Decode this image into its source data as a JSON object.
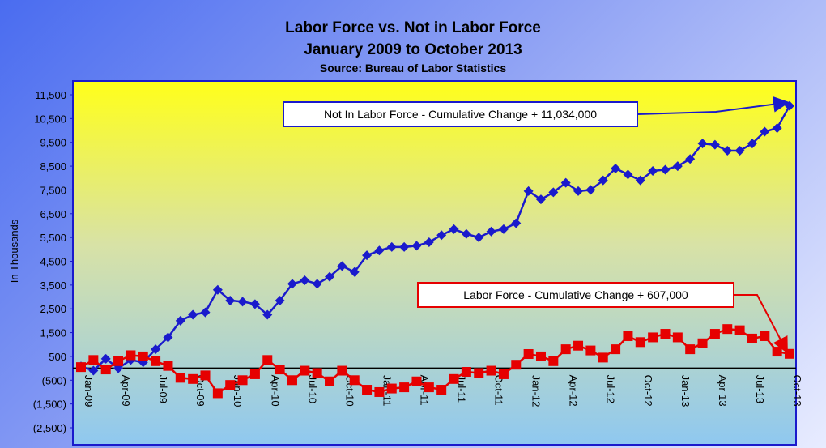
{
  "chart_data": {
    "type": "line",
    "title": "Labor Force vs. Not in Labor Force",
    "subtitle": "January 2009 to October 2013",
    "source": "Source: Bureau of Labor Statistics",
    "ylabel": "In Thousands",
    "xlabel": "",
    "ylim": [
      -2500,
      11500
    ],
    "yticks": [
      11500,
      10500,
      9500,
      8500,
      7500,
      6500,
      5500,
      4500,
      3500,
      2500,
      1500,
      500,
      -500,
      -1500,
      -2500
    ],
    "ytick_labels": [
      "11,500",
      "10,500",
      "9,500",
      "8,500",
      "7,500",
      "6,500",
      "5,500",
      "4,500",
      "3,500",
      "2,500",
      "1,500",
      "500",
      "(500)",
      "(1,500)",
      "(2,500)"
    ],
    "x": [
      "Jan-09",
      "Feb-09",
      "Mar-09",
      "Apr-09",
      "May-09",
      "Jun-09",
      "Jul-09",
      "Aug-09",
      "Sep-09",
      "Oct-09",
      "Nov-09",
      "Dec-09",
      "Jan-10",
      "Feb-10",
      "Mar-10",
      "Apr-10",
      "May-10",
      "Jun-10",
      "Jul-10",
      "Aug-10",
      "Sep-10",
      "Oct-10",
      "Nov-10",
      "Dec-10",
      "Jan-11",
      "Feb-11",
      "Mar-11",
      "Apr-11",
      "May-11",
      "Jun-11",
      "Jul-11",
      "Aug-11",
      "Sep-11",
      "Oct-11",
      "Nov-11",
      "Dec-11",
      "Jan-12",
      "Feb-12",
      "Mar-12",
      "Apr-12",
      "May-12",
      "Jun-12",
      "Jul-12",
      "Aug-12",
      "Sep-12",
      "Oct-12",
      "Nov-12",
      "Dec-12",
      "Jan-13",
      "Feb-13",
      "Mar-13",
      "Apr-13",
      "May-13",
      "Jun-13",
      "Jul-13",
      "Aug-13",
      "Sep-13",
      "Oct-13"
    ],
    "xtick_labels": [
      "Jan-09",
      "Apr-09",
      "Jul-09",
      "Oct-09",
      "Jan-10",
      "Apr-10",
      "Jul-10",
      "Oct-10",
      "Jan-11",
      "Apr-11",
      "Jul-11",
      "Oct-11",
      "Jan-12",
      "Apr-12",
      "Jul-12",
      "Oct-12",
      "Jan-13",
      "Apr-13",
      "Jul-13",
      "Oct-13"
    ],
    "series": [
      {
        "name": "Not In Labor Force",
        "color": "#1a1acc",
        "marker": "diamond",
        "values": [
          80,
          -100,
          400,
          0,
          350,
          250,
          800,
          1300,
          2000,
          2250,
          2350,
          3300,
          2850,
          2800,
          2700,
          2250,
          2850,
          3550,
          3700,
          3550,
          3850,
          4300,
          4050,
          4750,
          4950,
          5100,
          5100,
          5150,
          5300,
          5600,
          5850,
          5650,
          5500,
          5750,
          5850,
          6100,
          7450,
          7100,
          7400,
          7800,
          7450,
          7500,
          7900,
          8400,
          8150,
          7900,
          8300,
          8350,
          8500,
          8800,
          9450,
          9400,
          9150,
          9150,
          9450,
          9950,
          10100,
          11034
        ]
      },
      {
        "name": "Labor Force",
        "color": "#e60000",
        "marker": "square",
        "values": [
          50,
          350,
          -50,
          300,
          550,
          500,
          300,
          100,
          -400,
          -450,
          -300,
          -1050,
          -700,
          -500,
          -250,
          350,
          -50,
          -500,
          -100,
          -200,
          -550,
          -100,
          -500,
          -900,
          -1000,
          -850,
          -800,
          -550,
          -800,
          -900,
          -450,
          -150,
          -200,
          -100,
          -250,
          150,
          600,
          500,
          300,
          800,
          950,
          750,
          450,
          800,
          1350,
          1100,
          1300,
          1450,
          1300,
          800,
          1050,
          1450,
          1650,
          1600,
          1250,
          1350,
          700,
          607
        ]
      }
    ],
    "annotations": [
      {
        "text": "Not In Labor Force - Cumulative Change + 11,034,000",
        "color": "#1a1acc",
        "series": 0
      },
      {
        "text": "Labor Force - Cumulative Change + 607,000",
        "color": "#e60000",
        "series": 1
      }
    ],
    "grid": false,
    "zero_line": true
  }
}
